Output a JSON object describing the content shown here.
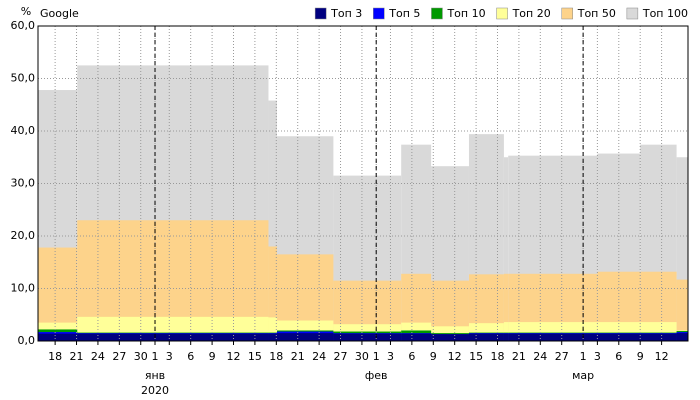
{
  "chart_data": {
    "type": "step-area",
    "title": "Google",
    "y_label": "%",
    "x": [
      -16.4,
      -10.9,
      15.9,
      17.1,
      25.0,
      34.5,
      38.7,
      44.0,
      48.9,
      49.5,
      62.0,
      68.0,
      73.1
    ],
    "xlim": [
      -16.4,
      74.7
    ],
    "ylim": [
      0,
      60
    ],
    "yticks": [
      {
        "value": 0,
        "label": "0,0"
      },
      {
        "value": 10,
        "label": "10,0"
      },
      {
        "value": 20,
        "label": "20,0"
      },
      {
        "value": 30,
        "label": "30,0"
      },
      {
        "value": 40,
        "label": "40,0"
      },
      {
        "value": 50,
        "label": "50,0"
      },
      {
        "value": 60,
        "label": "60,0"
      }
    ],
    "xticks": [
      {
        "value": -14,
        "label": "18"
      },
      {
        "value": -11,
        "label": "21"
      },
      {
        "value": -8,
        "label": "24"
      },
      {
        "value": -5,
        "label": "27"
      },
      {
        "value": -2,
        "label": "30"
      },
      {
        "value": 0,
        "label": "1"
      },
      {
        "value": 2,
        "label": "3"
      },
      {
        "value": 5,
        "label": "6"
      },
      {
        "value": 8,
        "label": "9"
      },
      {
        "value": 11,
        "label": "12"
      },
      {
        "value": 14,
        "label": "15"
      },
      {
        "value": 17,
        "label": "18"
      },
      {
        "value": 20,
        "label": "21"
      },
      {
        "value": 23,
        "label": "24"
      },
      {
        "value": 26,
        "label": "27"
      },
      {
        "value": 29,
        "label": "30"
      },
      {
        "value": 31,
        "label": "1"
      },
      {
        "value": 33,
        "label": "3"
      },
      {
        "value": 36,
        "label": "6"
      },
      {
        "value": 39,
        "label": "9"
      },
      {
        "value": 42,
        "label": "12"
      },
      {
        "value": 45,
        "label": "15"
      },
      {
        "value": 48,
        "label": "18"
      },
      {
        "value": 51,
        "label": "21"
      },
      {
        "value": 54,
        "label": "24"
      },
      {
        "value": 57,
        "label": "27"
      },
      {
        "value": 60,
        "label": "1"
      },
      {
        "value": 62,
        "label": "3"
      },
      {
        "value": 65,
        "label": "6"
      },
      {
        "value": 68,
        "label": "9"
      },
      {
        "value": 71,
        "label": "12"
      }
    ],
    "months": [
      {
        "value": 0,
        "label": "янв"
      },
      {
        "value": 31,
        "label": "фев"
      },
      {
        "value": 60,
        "label": "мар"
      }
    ],
    "year": {
      "value": 0,
      "label": "2020"
    },
    "grid": true,
    "legend": "top-right",
    "series": [
      {
        "name": "Топ 3",
        "color": "#000080",
        "values": [
          1.4,
          1.4,
          1.4,
          1.5,
          1.4,
          1.4,
          1.3,
          1.4,
          1.4,
          1.4,
          1.4,
          1.4,
          1.5
        ]
      },
      {
        "name": "Топ 5",
        "color": "#0000ff",
        "values": [
          1.7,
          1.5,
          1.5,
          1.8,
          1.5,
          1.5,
          1.3,
          1.5,
          1.5,
          1.5,
          1.5,
          1.5,
          1.7
        ]
      },
      {
        "name": "Топ 10",
        "color": "#009900",
        "values": [
          2.2,
          1.6,
          1.6,
          2.0,
          1.8,
          2.0,
          1.5,
          1.6,
          1.6,
          1.6,
          1.6,
          1.6,
          1.9
        ]
      },
      {
        "name": "Топ 20",
        "color": "#ffff99",
        "values": [
          3.5,
          4.6,
          4.5,
          3.9,
          3.2,
          3.5,
          2.8,
          3.4,
          3.6,
          3.6,
          3.6,
          3.6,
          2.0
        ]
      },
      {
        "name": "Топ 50",
        "color": "#fdd38b",
        "values": [
          17.8,
          23.0,
          18.0,
          16.5,
          11.5,
          12.8,
          11.5,
          12.7,
          12.8,
          12.8,
          13.2,
          13.2,
          11.7
        ]
      },
      {
        "name": "Топ 100",
        "color": "#d9d9d9",
        "values": [
          47.8,
          52.5,
          45.8,
          39.0,
          31.5,
          37.4,
          33.3,
          39.4,
          35.0,
          35.3,
          35.7,
          37.4,
          35.0
        ]
      }
    ]
  }
}
